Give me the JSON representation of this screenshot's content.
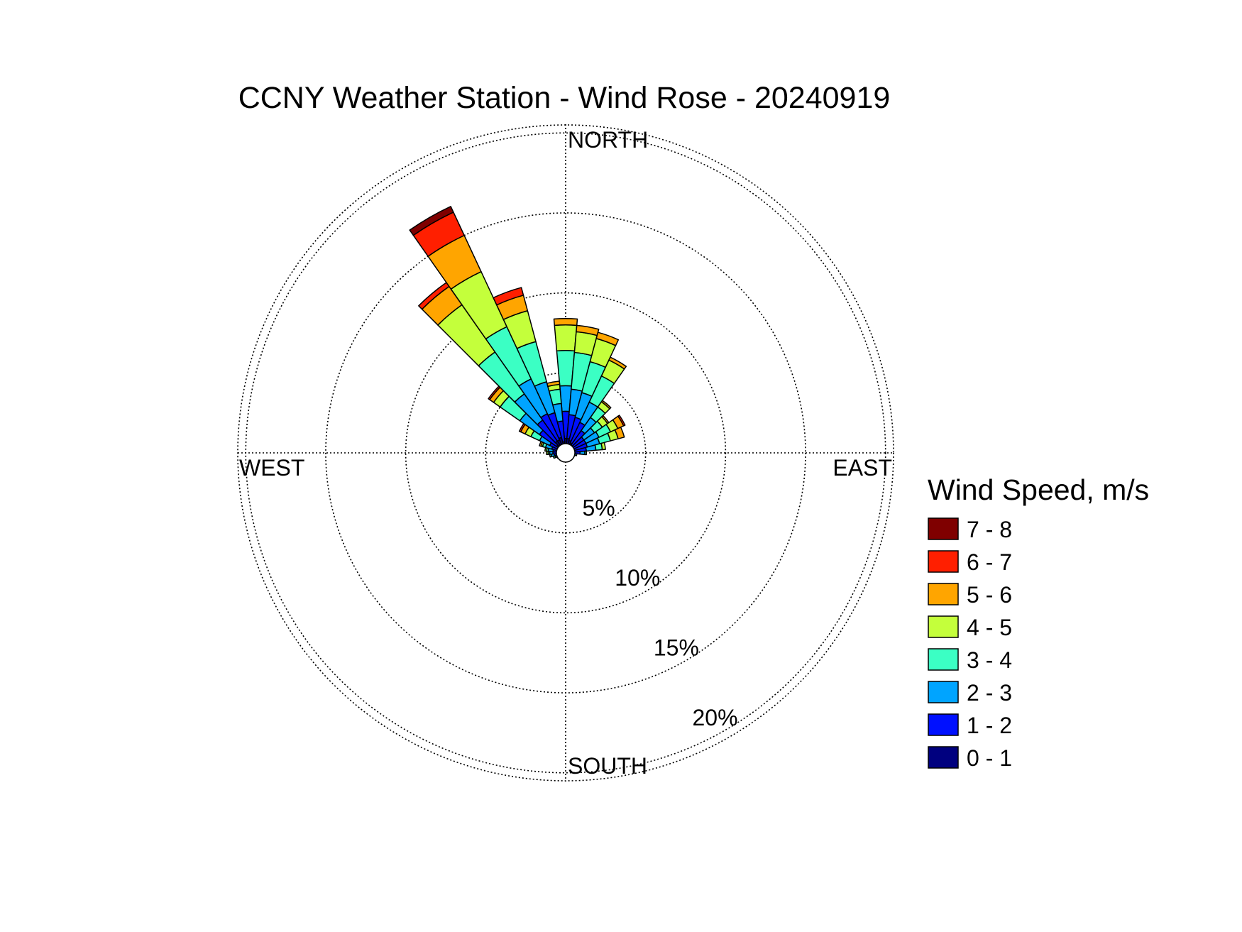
{
  "chart_data": {
    "type": "wind-rose",
    "title": "CCNY Weather Station - Wind Rose - 20240919",
    "direction_labels": {
      "north": "NORTH",
      "east": "EAST",
      "south": "SOUTH",
      "west": "WEST"
    },
    "radial_ticks": [
      {
        "value": 5,
        "label": "5%"
      },
      {
        "value": 10,
        "label": "10%"
      },
      {
        "value": 15,
        "label": "15%"
      },
      {
        "value": 20,
        "label": "20%"
      }
    ],
    "rmax": 20.5,
    "legend_title": "Wind Speed, m/s",
    "speed_bins": [
      {
        "label": "0 - 1",
        "color": "#00007f"
      },
      {
        "label": "1 - 2",
        "color": "#0010ff"
      },
      {
        "label": "2 - 3",
        "color": "#00a4ff"
      },
      {
        "label": "3 - 4",
        "color": "#3bffc4"
      },
      {
        "label": "4 - 5",
        "color": "#c4ff3b"
      },
      {
        "label": "5 - 6",
        "color": "#ffa500"
      },
      {
        "label": "6 - 7",
        "color": "#ff1f00"
      },
      {
        "label": "7 - 8",
        "color": "#7f0000"
      }
    ],
    "sector_width_deg": 10,
    "sectors": [
      {
        "direction": 0,
        "values": [
          0.9,
          1.7,
          1.6,
          2.2,
          1.6,
          0.4,
          0,
          0
        ]
      },
      {
        "direction": 10,
        "values": [
          0.9,
          1.5,
          1.6,
          2.3,
          1.3,
          0.4,
          0,
          0
        ]
      },
      {
        "direction": 20,
        "values": [
          0.8,
          1.5,
          1.6,
          2.0,
          1.5,
          0.4,
          0,
          0
        ]
      },
      {
        "direction": 30,
        "values": [
          0.7,
          1.4,
          1.4,
          1.8,
          1.1,
          0.2,
          0,
          0
        ]
      },
      {
        "direction": 40,
        "values": [
          0.6,
          1.1,
          1.0,
          0.8,
          0.4,
          0.1,
          0,
          0
        ]
      },
      {
        "direction": 50,
        "values": [
          0.5,
          0.9,
          0.8,
          0.6,
          0.4,
          0.1,
          0,
          0
        ]
      },
      {
        "direction": 60,
        "values": [
          0.5,
          0.9,
          0.9,
          0.8,
          0.5,
          0.4,
          0.1,
          0
        ]
      },
      {
        "direction": 70,
        "values": [
          0.5,
          0.9,
          0.8,
          0.7,
          0.5,
          0.4,
          0,
          0
        ]
      },
      {
        "direction": 80,
        "values": [
          0.5,
          0.8,
          0.6,
          0.4,
          0.2,
          0,
          0,
          0
        ]
      },
      {
        "direction": 90,
        "values": [
          0.4,
          0.5,
          0.3,
          0.1,
          0,
          0,
          0,
          0
        ]
      },
      {
        "direction": 100,
        "values": [
          0.3,
          0.3,
          0.1,
          0,
          0,
          0,
          0,
          0
        ]
      },
      {
        "direction": 110,
        "values": [
          0.2,
          0.2,
          0.1,
          0,
          0,
          0,
          0,
          0
        ]
      },
      {
        "direction": 120,
        "values": [
          0.2,
          0.1,
          0,
          0,
          0,
          0,
          0,
          0
        ]
      },
      {
        "direction": 130,
        "values": [
          0.1,
          0.1,
          0,
          0,
          0,
          0,
          0,
          0
        ]
      },
      {
        "direction": 140,
        "values": [
          0.1,
          0.1,
          0,
          0,
          0,
          0,
          0,
          0
        ]
      },
      {
        "direction": 150,
        "values": [
          0.1,
          0,
          0,
          0,
          0,
          0,
          0,
          0
        ]
      },
      {
        "direction": 160,
        "values": [
          0.1,
          0,
          0,
          0,
          0,
          0,
          0,
          0
        ]
      },
      {
        "direction": 170,
        "values": [
          0.1,
          0,
          0,
          0,
          0,
          0,
          0,
          0
        ]
      },
      {
        "direction": 180,
        "values": [
          0.1,
          0,
          0,
          0,
          0,
          0,
          0,
          0
        ]
      },
      {
        "direction": 190,
        "values": [
          0.1,
          0,
          0,
          0,
          0,
          0,
          0,
          0
        ]
      },
      {
        "direction": 200,
        "values": [
          0.1,
          0.1,
          0,
          0,
          0,
          0,
          0,
          0
        ]
      },
      {
        "direction": 210,
        "values": [
          0.1,
          0.1,
          0,
          0,
          0,
          0,
          0,
          0
        ]
      },
      {
        "direction": 220,
        "values": [
          0.2,
          0.1,
          0,
          0,
          0,
          0,
          0,
          0
        ]
      },
      {
        "direction": 230,
        "values": [
          0.2,
          0.1,
          0.1,
          0,
          0,
          0,
          0,
          0
        ]
      },
      {
        "direction": 240,
        "values": [
          0.3,
          0.2,
          0.1,
          0,
          0,
          0,
          0,
          0
        ]
      },
      {
        "direction": 250,
        "values": [
          0.3,
          0.3,
          0.1,
          0.1,
          0,
          0,
          0,
          0
        ]
      },
      {
        "direction": 260,
        "values": [
          0.4,
          0.3,
          0.2,
          0.1,
          0,
          0,
          0,
          0
        ]
      },
      {
        "direction": 270,
        "values": [
          0.4,
          0.4,
          0.2,
          0.1,
          0.1,
          0,
          0,
          0
        ]
      },
      {
        "direction": 280,
        "values": [
          0.4,
          0.4,
          0.3,
          0.1,
          0.1,
          0,
          0,
          0
        ]
      },
      {
        "direction": 290,
        "values": [
          0.5,
          0.4,
          0.4,
          0.2,
          0.1,
          0.1,
          0,
          0
        ]
      },
      {
        "direction": 300,
        "values": [
          0.5,
          0.6,
          0.7,
          0.6,
          0.4,
          0.3,
          0.1,
          0
        ]
      },
      {
        "direction": 310,
        "values": [
          0.7,
          1.3,
          1.5,
          1.5,
          0.5,
          0.3,
          0.1,
          0
        ]
      },
      {
        "direction": 320,
        "values": [
          0.9,
          1.6,
          2.0,
          3.2,
          3.6,
          1.4,
          0.3,
          0
        ]
      },
      {
        "direction": 330,
        "values": [
          0.9,
          1.8,
          2.4,
          3.6,
          3.8,
          2.5,
          1.6,
          0.4
        ]
      },
      {
        "direction": 340,
        "values": [
          1.0,
          1.6,
          2.0,
          2.6,
          2.0,
          1.0,
          0.5,
          0
        ]
      },
      {
        "direction": 350,
        "values": [
          0.7,
          1.3,
          1.1,
          0.9,
          0.3,
          0.2,
          0,
          0
        ]
      }
    ]
  }
}
